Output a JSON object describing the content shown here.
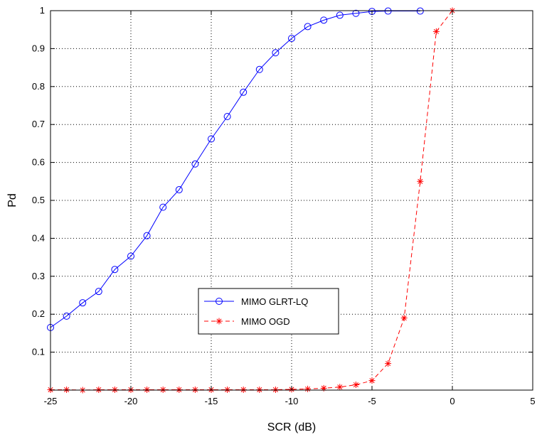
{
  "chart_data": {
    "type": "line",
    "title": "",
    "xlabel": "SCR (dB)",
    "ylabel": "Pd",
    "xlim": [
      -25,
      5
    ],
    "ylim": [
      0,
      1
    ],
    "xticks": [
      -25,
      -20,
      -15,
      -10,
      -5,
      0,
      5
    ],
    "yticks": [
      0.1,
      0.2,
      0.3,
      0.4,
      0.5,
      0.6,
      0.7,
      0.8,
      0.9,
      1
    ],
    "xtick_labels": [
      "-25",
      "-20",
      "-15",
      "-10",
      "-5",
      "0",
      "5"
    ],
    "ytick_labels": [
      "0.1",
      "0.2",
      "0.3",
      "0.4",
      "0.5",
      "0.6",
      "0.7",
      "0.8",
      "0.9",
      "1"
    ],
    "grid": true,
    "legend_position": "lower-center",
    "series": [
      {
        "name": "MIMO GLRT-LQ",
        "color": "#0000ff",
        "line_style": "solid",
        "marker": "circle",
        "x": [
          -25,
          -24,
          -23,
          -22,
          -21,
          -20,
          -19,
          -18,
          -17,
          -16,
          -15,
          -14,
          -13,
          -12,
          -11,
          -10,
          -9,
          -8,
          -7,
          -6,
          -5,
          -4,
          -2
        ],
        "y": [
          0.165,
          0.195,
          0.23,
          0.26,
          0.318,
          0.353,
          0.407,
          0.482,
          0.528,
          0.596,
          0.662,
          0.721,
          0.785,
          0.845,
          0.889,
          0.927,
          0.958,
          0.975,
          0.988,
          0.993,
          0.998,
          0.999,
          0.999
        ]
      },
      {
        "name": "MIMO OGD",
        "color": "#ff0000",
        "line_style": "dashed",
        "marker": "star",
        "x": [
          -25,
          -24,
          -23,
          -22,
          -21,
          -20,
          -19,
          -18,
          -17,
          -16,
          -15,
          -14,
          -13,
          -12,
          -11,
          -10,
          -9,
          -8,
          -7,
          -6,
          -5,
          -4,
          -3,
          -2,
          -1,
          0
        ],
        "y": [
          0.001,
          0.001,
          0.0,
          0.001,
          0.001,
          0.001,
          0.001,
          0.001,
          0.001,
          0.001,
          0.001,
          0.001,
          0.001,
          0.001,
          0.001,
          0.002,
          0.003,
          0.005,
          0.008,
          0.014,
          0.025,
          0.07,
          0.19,
          0.55,
          0.945,
          1.0
        ]
      }
    ]
  }
}
